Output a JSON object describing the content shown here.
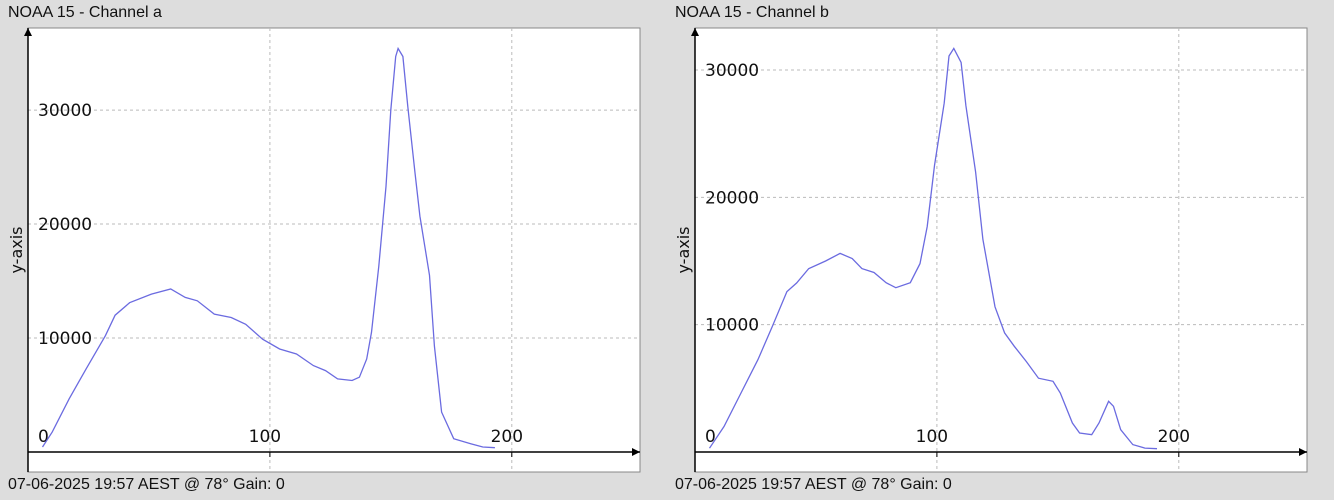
{
  "chart_data": [
    {
      "type": "line",
      "title": "NOAA 15 - Channel a",
      "footer": "07-06-2025 19:57 AEST @ 78° Gain: 0",
      "xlabel": "",
      "ylabel": "y-axis",
      "xlim": [
        0,
        253
      ],
      "ylim": [
        0,
        37200
      ],
      "xticks": [
        0,
        100,
        200
      ],
      "yticks": [
        10000,
        20000,
        30000
      ],
      "xtick_labels": [
        "0",
        "100",
        "200"
      ],
      "ytick_labels": [
        "10000",
        "20000",
        "30000"
      ],
      "grid": true,
      "color": "#6b6be0",
      "series": [
        {
          "name": "Channel a",
          "x": [
            6,
            10,
            17,
            24,
            32,
            36,
            42,
            51,
            59,
            65,
            70,
            77,
            84,
            90,
            97,
            104,
            111,
            118,
            123,
            128,
            134,
            137,
            140,
            142,
            145,
            148,
            150,
            152,
            153,
            155,
            157,
            160,
            162,
            164,
            166,
            168,
            171,
            176,
            183,
            188,
            193
          ],
          "y": [
            440,
            1750,
            4660,
            7290,
            10200,
            12000,
            13100,
            13850,
            14300,
            13560,
            13270,
            12100,
            11800,
            11200,
            9900,
            9040,
            8600,
            7580,
            7140,
            6410,
            6270,
            6560,
            8160,
            10500,
            16300,
            23300,
            30000,
            34700,
            35400,
            34700,
            30300,
            24500,
            20700,
            18100,
            15500,
            9300,
            3500,
            1170,
            730,
            440,
            380
          ]
        }
      ]
    },
    {
      "type": "line",
      "title": "NOAA 15 - Channel b",
      "footer": "07-06-2025 19:57 AEST @ 78° Gain: 0",
      "xlabel": "",
      "ylabel": "y-axis",
      "xlim": [
        0,
        253
      ],
      "ylim": [
        0,
        33300
      ],
      "xticks": [
        0,
        100,
        200
      ],
      "yticks": [
        10000,
        20000,
        30000
      ],
      "xtick_labels": [
        "0",
        "100",
        "200"
      ],
      "ytick_labels": [
        "10000",
        "20000",
        "30000"
      ],
      "grid": true,
      "color": "#6b6be0",
      "series": [
        {
          "name": "Channel b",
          "x": [
            6,
            12,
            19,
            26,
            32,
            38,
            42,
            47,
            54,
            60,
            65,
            69,
            74,
            79,
            83,
            89,
            93,
            96,
            99,
            103,
            105,
            107,
            110,
            112,
            116,
            119,
            124,
            128,
            132,
            137,
            142,
            148,
            151,
            156,
            159,
            164,
            167,
            171,
            173,
            176,
            181,
            186,
            191
          ],
          "y": [
            300,
            2000,
            4630,
            7250,
            9870,
            12600,
            13270,
            14400,
            15000,
            15600,
            15200,
            14400,
            14100,
            13300,
            12900,
            13300,
            14800,
            17700,
            22500,
            27400,
            31100,
            31700,
            30600,
            27200,
            22000,
            16700,
            11400,
            9350,
            8300,
            7100,
            5800,
            5550,
            4630,
            2280,
            1490,
            1360,
            2280,
            3980,
            3590,
            1750,
            580,
            310,
            260
          ]
        }
      ]
    }
  ]
}
